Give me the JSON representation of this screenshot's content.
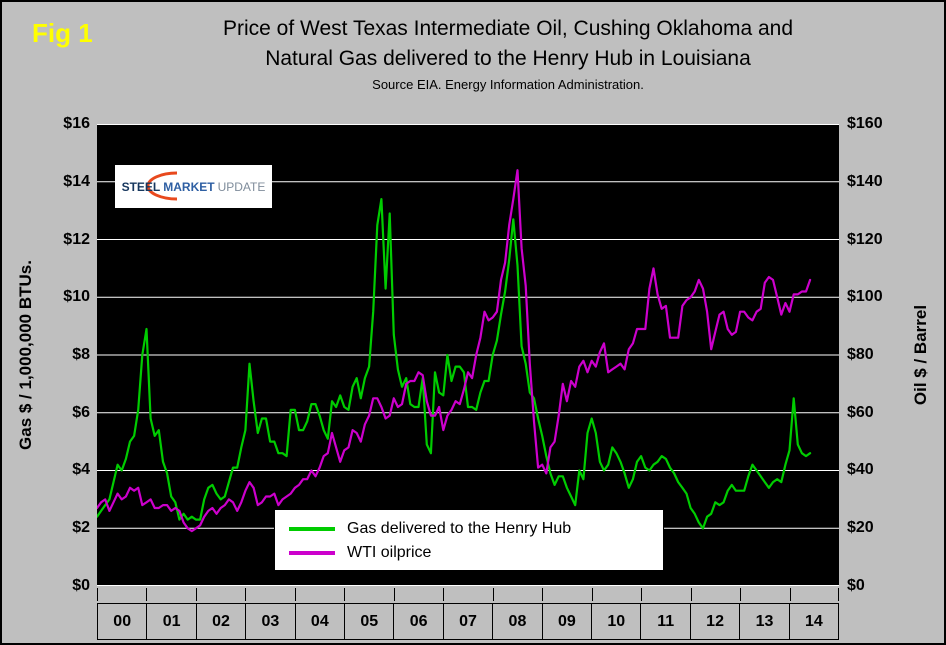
{
  "fig_label": "Fig 1",
  "title_line1": "Price of West Texas Intermediate Oil, Cushing Oklahoma and",
  "title_line2": "Natural Gas delivered to the Henry Hub in Louisiana",
  "subtitle": "Source EIA. Energy Information Administration.",
  "logo": {
    "part1": "STEEL",
    "part2": "MARKET",
    "part3": "UPDATE"
  },
  "left_axis": {
    "title": "Gas $ / 1,000,000 BTUs.",
    "ticks": [
      "$16",
      "$14",
      "$12",
      "$10",
      "$8",
      "$6",
      "$4",
      "$2",
      "$0"
    ]
  },
  "right_axis": {
    "title": "Oil $ / Barrel",
    "ticks": [
      "$160",
      "$140",
      "$120",
      "$100",
      "$80",
      "$60",
      "$40",
      "$20",
      "$0"
    ]
  },
  "x_axis": {
    "years": [
      "00",
      "01",
      "02",
      "03",
      "04",
      "05",
      "06",
      "07",
      "08",
      "09",
      "10",
      "11",
      "12",
      "13",
      "14"
    ]
  },
  "legend": {
    "items": [
      {
        "label": "Gas delivered to the Henry Hub",
        "color": "#00CC00"
      },
      {
        "label": "WTI oilprice",
        "color": "#CC00CC"
      }
    ]
  },
  "colors": {
    "background": "#BFBFBF",
    "plot_background": "#000000",
    "gridline": "#FFFFFF",
    "gas_line": "#00CC00",
    "oil_line": "#CC00CC",
    "fig_label": "#FFFF00"
  },
  "chart_data": {
    "type": "line",
    "title": "Price of West Texas Intermediate Oil, Cushing Oklahoma and Natural Gas delivered to the Henry Hub in Louisiana",
    "subtitle": "Source EIA. Energy Information Administration.",
    "ylabel_left": "Gas $ / 1,000,000 BTUs.",
    "ylabel_right": "Oil $ / Barrel",
    "left_ylim": [
      0,
      16
    ],
    "right_ylim": [
      0,
      160
    ],
    "grid_step_left": 2,
    "grid": "horizontal",
    "legend_position": "bottom-center-inside",
    "x_start_year": 2000,
    "points_per_year": 12,
    "x_cells": 15,
    "x_tick_labels": [
      "00",
      "01",
      "02",
      "03",
      "04",
      "05",
      "06",
      "07",
      "08",
      "09",
      "10",
      "11",
      "12",
      "13",
      "14"
    ],
    "series": [
      {
        "name": "Gas delivered to the Henry Hub",
        "axis": "left",
        "units": "$/1,000,000 BTUs",
        "color": "#00CC00",
        "monthly_values": [
          2.4,
          2.6,
          2.8,
          3.0,
          3.6,
          4.2,
          4.0,
          4.4,
          5.0,
          5.2,
          6.1,
          8.0,
          8.9,
          5.8,
          5.2,
          5.4,
          4.3,
          3.9,
          3.1,
          2.9,
          2.3,
          2.5,
          2.3,
          2.4,
          2.3,
          2.3,
          3.0,
          3.4,
          3.5,
          3.2,
          3.0,
          3.1,
          3.6,
          4.1,
          4.1,
          4.8,
          5.4,
          7.7,
          6.4,
          5.3,
          5.8,
          5.8,
          5.0,
          5.0,
          4.6,
          4.6,
          4.5,
          6.1,
          6.1,
          5.4,
          5.4,
          5.7,
          6.3,
          6.3,
          5.9,
          5.4,
          5.1,
          6.4,
          6.2,
          6.6,
          6.2,
          6.1,
          6.9,
          7.2,
          6.5,
          7.2,
          7.6,
          9.5,
          12.5,
          13.4,
          10.3,
          12.9,
          8.7,
          7.5,
          6.9,
          7.2,
          6.3,
          6.2,
          6.2,
          7.2,
          4.9,
          4.6,
          7.4,
          6.7,
          6.6,
          8.0,
          7.1,
          7.6,
          7.6,
          7.4,
          6.2,
          6.2,
          6.1,
          6.7,
          7.1,
          7.1,
          8.0,
          8.5,
          9.4,
          10.2,
          11.3,
          12.7,
          11.1,
          8.3,
          7.7,
          6.7,
          6.5,
          5.8,
          5.2,
          4.5,
          3.9,
          3.5,
          3.8,
          3.8,
          3.4,
          3.1,
          2.8,
          4.0,
          3.7,
          5.3,
          5.8,
          5.3,
          4.3,
          4.0,
          4.2,
          4.8,
          4.6,
          4.3,
          3.9,
          3.4,
          3.7,
          4.3,
          4.5,
          4.1,
          4.0,
          4.2,
          4.3,
          4.5,
          4.4,
          4.1,
          3.9,
          3.6,
          3.4,
          3.2,
          2.7,
          2.5,
          2.2,
          2.0,
          2.4,
          2.5,
          2.9,
          2.8,
          2.9,
          3.3,
          3.5,
          3.3,
          3.3,
          3.3,
          3.8,
          4.2,
          4.0,
          3.8,
          3.6,
          3.4,
          3.6,
          3.7,
          3.6,
          4.2,
          4.7,
          6.5,
          4.9,
          4.6,
          4.5,
          4.6
        ]
      },
      {
        "name": "WTI oilprice",
        "axis": "right",
        "units": "$/Barrel",
        "color": "#CC00CC",
        "monthly_values": [
          27,
          29,
          30,
          26,
          29,
          32,
          30,
          31,
          34,
          33,
          34,
          28,
          29,
          30,
          27,
          27,
          28,
          28,
          26,
          27,
          26,
          22,
          20,
          19,
          20,
          21,
          24,
          26,
          27,
          25,
          27,
          28,
          30,
          29,
          26,
          29,
          33,
          36,
          34,
          28,
          29,
          31,
          31,
          32,
          28,
          30,
          31,
          32,
          34,
          35,
          37,
          37,
          40,
          38,
          41,
          45,
          46,
          53,
          48,
          43,
          47,
          48,
          54,
          53,
          50,
          56,
          59,
          65,
          65,
          62,
          58,
          59,
          65,
          62,
          63,
          70,
          71,
          71,
          74,
          73,
          64,
          59,
          59,
          62,
          54,
          59,
          61,
          64,
          63,
          68,
          74,
          72,
          80,
          86,
          95,
          92,
          93,
          95,
          106,
          112,
          125,
          134,
          144,
          117,
          104,
          77,
          57,
          41,
          42,
          39,
          48,
          50,
          59,
          70,
          64,
          71,
          69,
          76,
          78,
          74,
          78,
          76,
          81,
          84,
          74,
          75,
          76,
          77,
          75,
          82,
          84,
          89,
          89,
          89,
          103,
          110,
          101,
          96,
          97,
          86,
          86,
          86,
          97,
          99,
          100,
          102,
          106,
          103,
          95,
          82,
          88,
          94,
          95,
          89,
          87,
          88,
          95,
          95,
          93,
          92,
          95,
          96,
          105,
          107,
          106,
          100,
          94,
          98,
          95,
          101,
          101,
          102,
          102,
          106
        ]
      }
    ]
  }
}
